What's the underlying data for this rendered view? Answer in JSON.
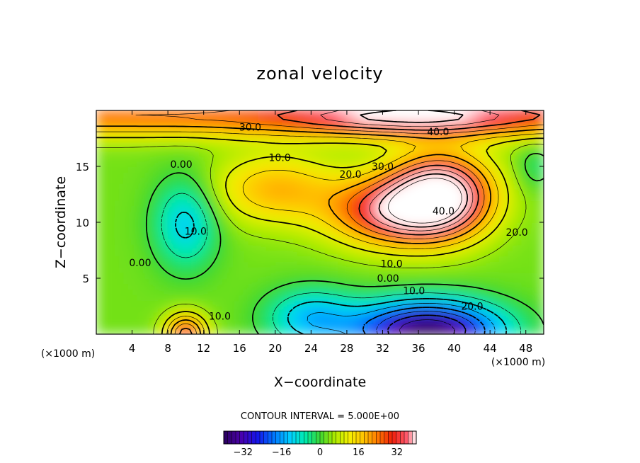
{
  "chart_data": {
    "type": "heatmap",
    "title": "zonal velocity",
    "xlabel": "X−coordinate",
    "ylabel": "Z−coordinate",
    "x_unit_left": "(×1000 m)",
    "x_unit_right": "(×1000 m)",
    "x_ticks": [
      4,
      8,
      12,
      16,
      20,
      24,
      28,
      32,
      36,
      40,
      44,
      48
    ],
    "y_ticks": [
      5,
      10,
      15
    ],
    "xlim": [
      0,
      50
    ],
    "ylim": [
      0,
      20
    ],
    "contour_interval_text": "CONTOUR INTERVAL = 5.000E+00",
    "contour_interval": 5,
    "colorbar": {
      "min": -40,
      "max": 40,
      "ticks": [
        -32,
        -16,
        0,
        16,
        32
      ],
      "tick_labels": [
        "−32",
        "−16",
        "0",
        "16",
        "32"
      ]
    },
    "colorscale": "rainbow",
    "contour_labels": [
      {
        "text": "30.0",
        "x": 17.2,
        "y": 18.5
      },
      {
        "text": "40.0",
        "x": 38.2,
        "y": 18.1
      },
      {
        "text": "0.00",
        "x": 9.5,
        "y": 15.2
      },
      {
        "text": "10.0",
        "x": 20.5,
        "y": 15.8
      },
      {
        "text": "20.0",
        "x": 28.4,
        "y": 14.3
      },
      {
        "text": "30.0",
        "x": 32.0,
        "y": 15.0
      },
      {
        "text": "40.0",
        "x": 38.8,
        "y": 11.0
      },
      {
        "text": "10.0",
        "x": 11.1,
        "y": 9.2
      },
      {
        "text": "20.0",
        "x": 47.0,
        "y": 9.1
      },
      {
        "text": "0.00",
        "x": 4.9,
        "y": 6.4
      },
      {
        "text": "10.0",
        "x": 33.0,
        "y": 6.3
      },
      {
        "text": "0.00",
        "x": 32.6,
        "y": 5.0
      },
      {
        "text": "10.0",
        "x": 35.5,
        "y": 3.9
      },
      {
        "text": "20.0",
        "x": 42.0,
        "y": 2.5
      },
      {
        "text": "10.0",
        "x": 13.8,
        "y": 1.6
      }
    ],
    "features": [
      {
        "type": "max",
        "x": 38.5,
        "y": 12.5,
        "value": 45
      },
      {
        "type": "max",
        "x": 36,
        "y": 19.5,
        "value": 45
      },
      {
        "type": "max",
        "x": 10,
        "y": 0.3,
        "value": 33
      },
      {
        "type": "min",
        "x": 37,
        "y": 0.5,
        "value": -34
      },
      {
        "type": "min",
        "x": 10,
        "y": 10,
        "value": -12
      }
    ]
  }
}
